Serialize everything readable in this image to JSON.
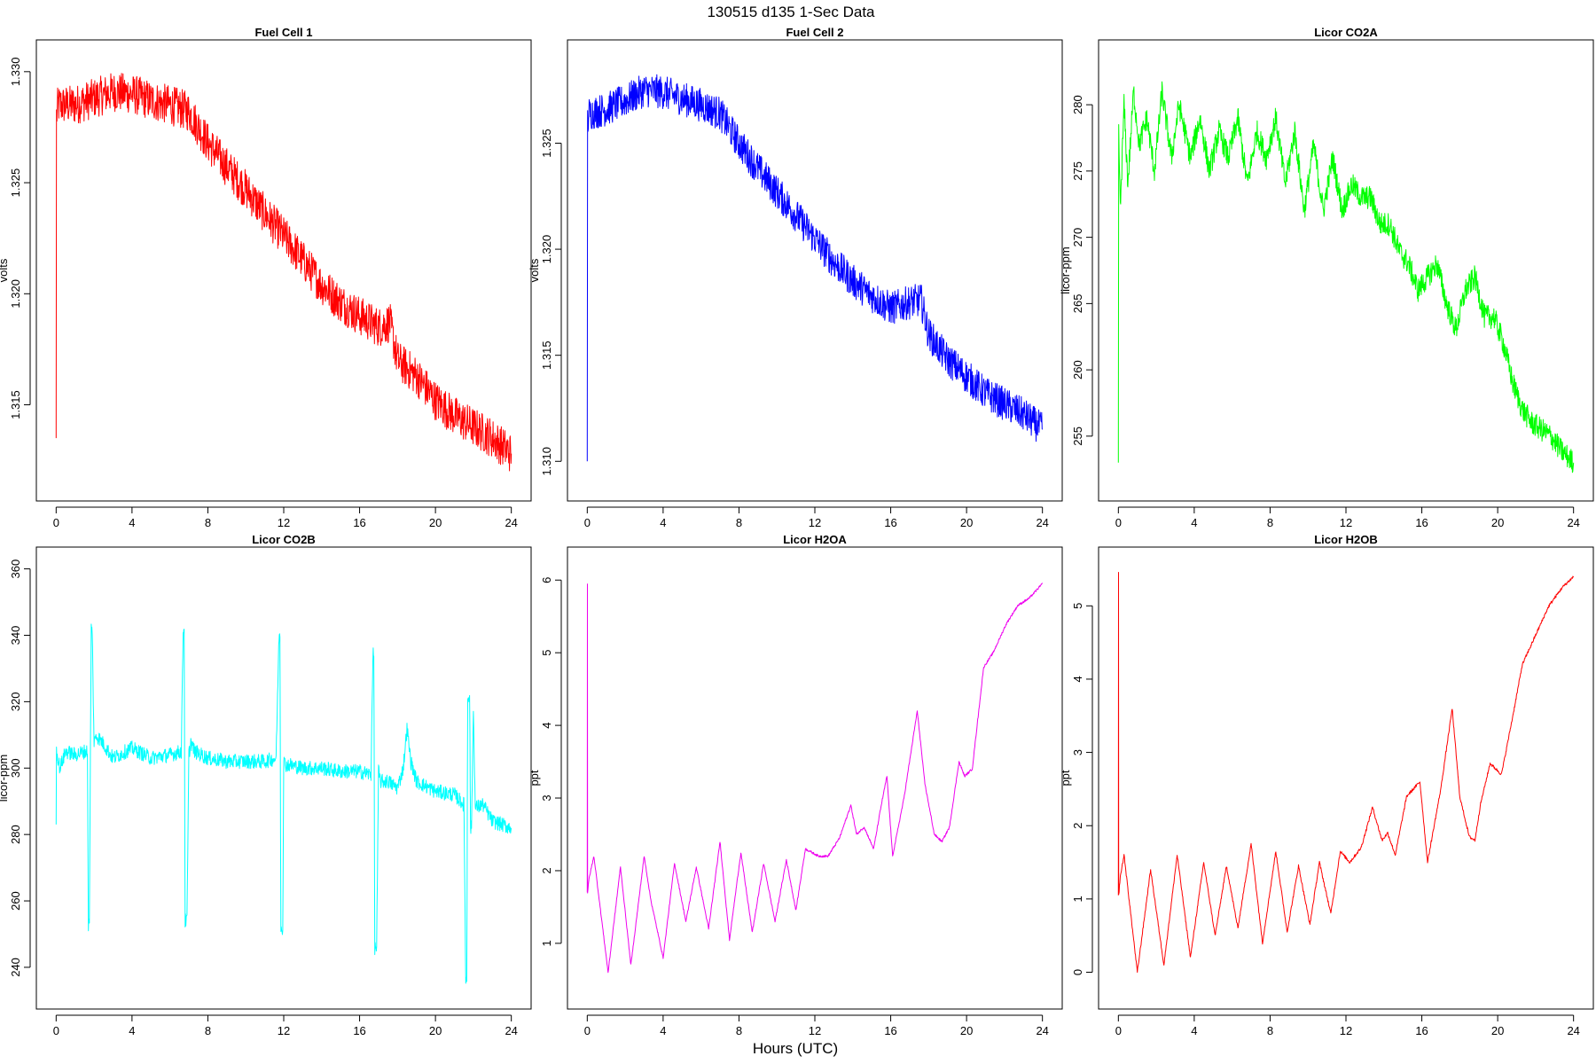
{
  "figure": {
    "title": "130515   d135   1-Sec Data",
    "xlabel": "Hours (UTC)"
  },
  "chart_data": [
    {
      "type": "line",
      "title": "Fuel Cell 1",
      "ylabel": "volts",
      "color": "#ff0000",
      "xlim": [
        0,
        24
      ],
      "ylim": [
        1.3115,
        1.3306
      ],
      "xticks": [
        0,
        4,
        8,
        12,
        16,
        20,
        24
      ],
      "yticks": [
        1.315,
        1.32,
        1.325,
        1.33
      ],
      "ytick_labels": [
        "1.315",
        "1.320",
        "1.325",
        "1.330"
      ],
      "noise": 0.0009,
      "x": [
        0,
        0.02,
        0.1,
        1,
        2,
        3,
        4,
        5,
        6,
        7,
        8,
        9,
        10,
        11,
        12,
        13,
        14,
        15,
        16,
        17,
        17.6,
        18,
        19,
        20,
        21,
        22,
        23,
        24
      ],
      "y": [
        1.3135,
        1.328,
        1.3285,
        1.3285,
        1.3288,
        1.3291,
        1.329,
        1.3287,
        1.3285,
        1.3282,
        1.3268,
        1.3257,
        1.3247,
        1.3236,
        1.3226,
        1.3215,
        1.3204,
        1.3196,
        1.319,
        1.3185,
        1.3187,
        1.317,
        1.3163,
        1.3152,
        1.3145,
        1.314,
        1.3135,
        1.3128
      ]
    },
    {
      "type": "line",
      "title": "Fuel Cell 2",
      "ylabel": "volts",
      "color": "#0000ff",
      "xlim": [
        0,
        24
      ],
      "ylim": [
        1.309,
        1.329
      ],
      "xticks": [
        0,
        4,
        8,
        12,
        16,
        20,
        24
      ],
      "yticks": [
        1.31,
        1.315,
        1.32,
        1.325
      ],
      "ytick_labels": [
        "1.310",
        "1.315",
        "1.320",
        "1.325"
      ],
      "noise": 0.0008,
      "x": [
        0,
        0.02,
        0.1,
        1,
        2,
        3,
        4,
        5,
        6,
        7,
        8,
        9,
        10,
        11,
        12,
        13,
        14,
        15,
        16,
        17,
        17.6,
        18,
        19,
        20,
        21,
        22,
        23,
        24
      ],
      "y": [
        1.31,
        1.326,
        1.3264,
        1.3266,
        1.327,
        1.3275,
        1.3274,
        1.3271,
        1.3268,
        1.3264,
        1.325,
        1.3238,
        1.3227,
        1.3216,
        1.3205,
        1.3194,
        1.3185,
        1.3178,
        1.3172,
        1.3175,
        1.3176,
        1.316,
        1.3148,
        1.314,
        1.3132,
        1.3127,
        1.3122,
        1.3115
      ]
    },
    {
      "type": "line",
      "title": "Licor CO2A",
      "ylabel": "licor-ppm",
      "color": "#00ff00",
      "xlim": [
        0,
        24
      ],
      "ylim": [
        251.5,
        283.5
      ],
      "xticks": [
        0,
        4,
        8,
        12,
        16,
        20,
        24
      ],
      "yticks": [
        255,
        260,
        265,
        270,
        275,
        280
      ],
      "ytick_labels": [
        "255",
        "260",
        "265",
        "270",
        "275",
        "280"
      ],
      "noise": 0.9,
      "x": [
        0,
        0.02,
        0.1,
        0.3,
        0.5,
        0.8,
        1.1,
        1.5,
        1.9,
        2.3,
        2.8,
        3.2,
        3.8,
        4.3,
        4.8,
        5.3,
        5.8,
        6.3,
        6.8,
        7.3,
        7.8,
        8.3,
        8.8,
        9.3,
        9.8,
        10.3,
        10.8,
        11.3,
        11.8,
        12.3,
        12.8,
        13.3,
        13.8,
        14.3,
        14.8,
        15.3,
        15.8,
        16.3,
        16.8,
        17.3,
        17.8,
        18.3,
        18.8,
        19.3,
        19.8,
        20.3,
        20.8,
        21.3,
        21.8,
        22.3,
        22.8,
        23.3,
        24
      ],
      "y": [
        253,
        278,
        272,
        280,
        274,
        281,
        277,
        279,
        275,
        281,
        276,
        280,
        276,
        279,
        275,
        278,
        276,
        279,
        274,
        278,
        276,
        279,
        274,
        278,
        272,
        277,
        272,
        276,
        272,
        274,
        273,
        273,
        271,
        271,
        269,
        268,
        266,
        267,
        268,
        265,
        263,
        266,
        267,
        264,
        264,
        262,
        259,
        257,
        256,
        255.5,
        255,
        254,
        253
      ]
    },
    {
      "type": "line",
      "title": "Licor CO2B",
      "ylabel": "licor-ppm",
      "color": "#00ffff",
      "xlim": [
        0,
        24
      ],
      "ylim": [
        233,
        361
      ],
      "xticks": [
        0,
        4,
        8,
        12,
        16,
        20,
        24
      ],
      "yticks": [
        240,
        260,
        280,
        300,
        320,
        340,
        360
      ],
      "ytick_labels": [
        "240",
        "260",
        "280",
        "300",
        "320",
        "340",
        "360"
      ],
      "noise": 2.2,
      "x": [
        0,
        0.02,
        0.2,
        0.5,
        1,
        1.5,
        1.65,
        1.7,
        1.75,
        1.85,
        1.9,
        2.0,
        2.1,
        2.4,
        3,
        4,
        5,
        6,
        6.6,
        6.7,
        6.75,
        6.8,
        6.9,
        7.0,
        7.1,
        7.3,
        8,
        9,
        10,
        11,
        11.6,
        11.75,
        11.8,
        11.85,
        11.95,
        12.0,
        12.1,
        12.3,
        13,
        14,
        15,
        16,
        16.6,
        16.7,
        16.75,
        16.8,
        16.9,
        17.0,
        17.1,
        17.5,
        18,
        18.3,
        18.5,
        18.7,
        19,
        20,
        21,
        21.5,
        21.6,
        21.65,
        21.7,
        21.8,
        21.85,
        21.9,
        22.0,
        22.1,
        22.5,
        23,
        24
      ],
      "y": [
        283,
        305,
        300,
        305,
        304,
        305,
        305,
        253,
        253,
        342,
        342,
        307,
        310,
        308,
        303,
        306,
        303,
        304,
        305,
        342,
        342,
        254,
        254,
        304,
        308,
        305,
        303,
        302,
        302,
        302,
        303,
        340,
        340,
        252,
        252,
        302,
        301,
        301,
        300,
        300,
        299,
        299,
        298,
        334,
        334,
        246,
        246,
        299,
        296,
        296,
        294,
        300,
        312,
        302,
        296,
        293,
        292,
        289,
        236,
        236,
        322,
        322,
        282,
        282,
        318,
        288,
        289,
        284,
        282
      ]
    },
    {
      "type": "line",
      "title": "Licor H2OA",
      "ylabel": "ppt",
      "color": "#ee00ee",
      "xlim": [
        0,
        24
      ],
      "ylim": [
        0.35,
        6.2
      ],
      "xticks": [
        0,
        4,
        8,
        12,
        16,
        20,
        24
      ],
      "yticks": [
        1,
        2,
        3,
        4,
        5,
        6
      ],
      "ytick_labels": [
        "1",
        "2",
        "3",
        "4",
        "5",
        "6"
      ],
      "noise": 0.015,
      "x": [
        0,
        0.01,
        0.02,
        0.1,
        0.35,
        1.1,
        1.75,
        2.3,
        3.0,
        3.35,
        4.0,
        4.6,
        5.2,
        5.75,
        6.4,
        7.0,
        7.5,
        8.1,
        8.7,
        9.3,
        9.9,
        10.5,
        11.0,
        11.5,
        12.2,
        12.7,
        13.3,
        13.9,
        14.2,
        14.6,
        15.1,
        15.5,
        15.8,
        16.1,
        16.7,
        17.4,
        17.8,
        18.3,
        18.7,
        19.1,
        19.6,
        19.9,
        20.3,
        20.9,
        21.4,
        22.1,
        22.7,
        23.3,
        24
      ],
      "y": [
        1.7,
        5.95,
        1.7,
        1.9,
        2.2,
        0.6,
        2.05,
        0.7,
        2.2,
        1.6,
        0.8,
        2.1,
        1.3,
        2.05,
        1.2,
        2.4,
        1.05,
        2.25,
        1.15,
        2.1,
        1.3,
        2.15,
        1.45,
        2.3,
        2.2,
        2.2,
        2.45,
        2.9,
        2.5,
        2.6,
        2.3,
        2.9,
        3.3,
        2.2,
        3.0,
        4.2,
        3.2,
        2.5,
        2.4,
        2.6,
        3.5,
        3.3,
        3.4,
        4.8,
        5.0,
        5.4,
        5.65,
        5.75,
        5.95
      ]
    },
    {
      "type": "line",
      "title": "Licor H2OB",
      "ylabel": "ppt",
      "color": "#ff0000",
      "xlim": [
        0,
        24
      ],
      "ylim": [
        -0.25,
        5.55
      ],
      "xticks": [
        0,
        4,
        8,
        12,
        16,
        20,
        24
      ],
      "yticks": [
        0,
        1,
        2,
        3,
        4,
        5
      ],
      "ytick_labels": [
        "0",
        "1",
        "2",
        "3",
        "4",
        "5"
      ],
      "noise": 0.02,
      "x": [
        0,
        0.01,
        0.02,
        0.1,
        0.3,
        1.0,
        1.7,
        2.4,
        3.1,
        3.8,
        4.5,
        5.1,
        5.7,
        6.3,
        7.0,
        7.6,
        8.3,
        8.9,
        9.5,
        10.1,
        10.6,
        11.2,
        11.7,
        12.2,
        12.8,
        13.4,
        13.9,
        14.2,
        14.6,
        15.2,
        15.9,
        16.3,
        17.0,
        17.6,
        18.0,
        18.5,
        18.8,
        19.1,
        19.6,
        20.2,
        20.8,
        21.3,
        22.0,
        22.7,
        23.4,
        24
      ],
      "y": [
        1.05,
        5.45,
        1.05,
        1.3,
        1.6,
        0.0,
        1.4,
        0.1,
        1.6,
        0.2,
        1.5,
        0.5,
        1.45,
        0.6,
        1.75,
        0.4,
        1.65,
        0.55,
        1.45,
        0.65,
        1.5,
        0.8,
        1.65,
        1.5,
        1.7,
        2.25,
        1.8,
        1.9,
        1.6,
        2.4,
        2.6,
        1.5,
        2.5,
        3.6,
        2.4,
        1.85,
        1.8,
        2.3,
        2.85,
        2.7,
        3.5,
        4.2,
        4.6,
        5.0,
        5.25,
        5.4
      ]
    }
  ]
}
